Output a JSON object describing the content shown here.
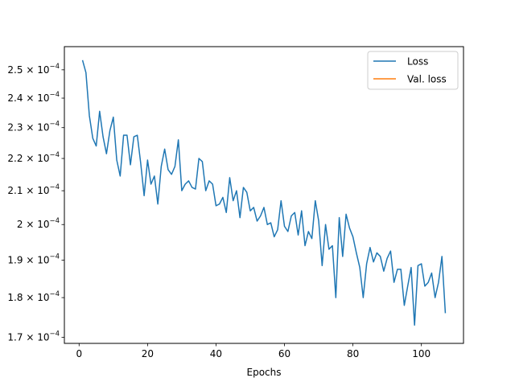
{
  "chart_data": {
    "type": "line",
    "title": "",
    "xlabel": "Epochs",
    "ylabel": "",
    "yscale": "log",
    "xlim": [
      -4.3,
      112.3
    ],
    "ylim": [
      0.0001685,
      0.0002585
    ],
    "x_ticks": [
      0,
      20,
      40,
      60,
      80,
      100
    ],
    "y_ticks": [
      {
        "value": 0.00017,
        "label": "1.7 × 10",
        "exp": "−4"
      },
      {
        "value": 0.00018,
        "label": "1.8 × 10",
        "exp": "−4"
      },
      {
        "value": 0.00019,
        "label": "1.9 × 10",
        "exp": "−4"
      },
      {
        "value": 0.0002,
        "label": "2 × 10",
        "exp": "−4"
      },
      {
        "value": 0.00021,
        "label": "2.1 × 10",
        "exp": "−4"
      },
      {
        "value": 0.00022,
        "label": "2.2 × 10",
        "exp": "−4"
      },
      {
        "value": 0.00023,
        "label": "2.3 × 10",
        "exp": "−4"
      },
      {
        "value": 0.00024,
        "label": "2.4 × 10",
        "exp": "−4"
      },
      {
        "value": 0.00025,
        "label": "2.5 × 10",
        "exp": "−4"
      }
    ],
    "grid": false,
    "legend_position": "top-right",
    "series": [
      {
        "name": "Loss",
        "color": "#1f77b4",
        "x": [
          1,
          2,
          3,
          4,
          5,
          6,
          7,
          8,
          9,
          10,
          11,
          12,
          13,
          14,
          15,
          16,
          17,
          18,
          19,
          20,
          21,
          22,
          23,
          24,
          25,
          26,
          27,
          28,
          29,
          30,
          31,
          32,
          33,
          34,
          35,
          36,
          37,
          38,
          39,
          40,
          41,
          42,
          43,
          44,
          45,
          46,
          47,
          48,
          49,
          50,
          51,
          52,
          53,
          54,
          55,
          56,
          57,
          58,
          59,
          60,
          61,
          62,
          63,
          64,
          65,
          66,
          67,
          68,
          69,
          70,
          71,
          72,
          73,
          74,
          75,
          76,
          77,
          78,
          79,
          80,
          81,
          82,
          83,
          84,
          85,
          86,
          87,
          88,
          89,
          90,
          91,
          92,
          93,
          94,
          95,
          96,
          97,
          98,
          99,
          100,
          101,
          102,
          103,
          104,
          105,
          106,
          107
        ],
        "y": [
          0.0002535,
          0.000249,
          0.000234,
          0.0002265,
          0.000224,
          0.0002355,
          0.000227,
          0.0002215,
          0.000229,
          0.0002335,
          0.0002195,
          0.0002145,
          0.0002275,
          0.0002275,
          0.000218,
          0.000227,
          0.0002275,
          0.0002185,
          0.0002085,
          0.0002195,
          0.000212,
          0.0002145,
          0.000206,
          0.0002175,
          0.000223,
          0.0002165,
          0.000215,
          0.0002175,
          0.000226,
          0.00021,
          0.000212,
          0.000213,
          0.000211,
          0.0002105,
          0.00022,
          0.000219,
          0.00021,
          0.000213,
          0.000212,
          0.0002055,
          0.000206,
          0.000208,
          0.0002035,
          0.000214,
          0.000207,
          0.00021,
          0.000202,
          0.000211,
          0.0002095,
          0.000204,
          0.000205,
          0.000201,
          0.0002025,
          0.000205,
          0.0002,
          0.0002005,
          0.0001965,
          0.0001985,
          0.000207,
          0.0001995,
          0.000198,
          0.0002025,
          0.0002035,
          0.000197,
          0.000204,
          0.000194,
          0.000198,
          0.000196,
          0.000207,
          0.000201,
          0.0001885,
          0.0002,
          0.000193,
          0.000194,
          0.00018,
          0.000202,
          0.000191,
          0.000203,
          0.000199,
          0.0001965,
          0.000192,
          0.000188,
          0.00018,
          0.000189,
          0.0001935,
          0.0001895,
          0.000192,
          0.000191,
          0.000187,
          0.0001905,
          0.0001925,
          0.000184,
          0.0001875,
          0.0001875,
          0.000178,
          0.000183,
          0.000188,
          0.000173,
          0.0001885,
          0.000189,
          0.000183,
          0.000184,
          0.0001865,
          0.00018,
          0.000184,
          0.000191,
          0.000176
        ]
      },
      {
        "name": "Val. loss",
        "color": "#ff7f0e",
        "x": [],
        "y": []
      }
    ]
  }
}
